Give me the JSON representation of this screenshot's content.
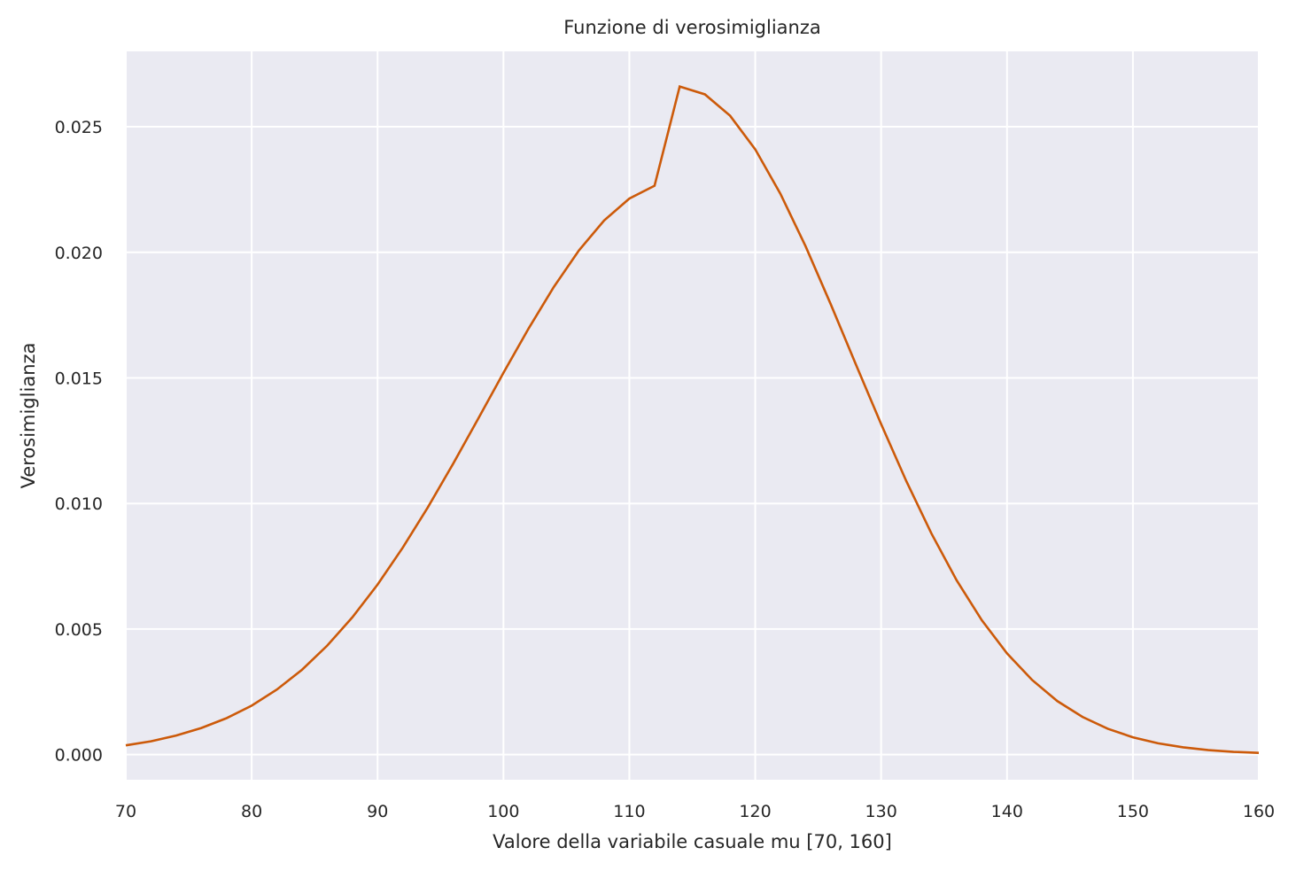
{
  "chart_data": {
    "type": "line",
    "title": "Funzione di verosimiglianza",
    "xlabel": "Valore della variabile casuale mu [70, 160]",
    "ylabel": "Verosimiglianza",
    "xlim": [
      70,
      160
    ],
    "ylim": [
      -0.001,
      0.028
    ],
    "xticks": [
      70,
      80,
      90,
      100,
      110,
      120,
      130,
      140,
      150,
      160
    ],
    "yticks": [
      0.0,
      0.005,
      0.01,
      0.015,
      0.02,
      0.025
    ],
    "xtick_labels": [
      "70",
      "80",
      "90",
      "100",
      "110",
      "120",
      "130",
      "140",
      "150",
      "160"
    ],
    "ytick_labels": [
      "0.000",
      "0.005",
      "0.010",
      "0.015",
      "0.020",
      "0.025"
    ],
    "grid": true,
    "background": "#eaeaf2",
    "grid_color": "#ffffff",
    "series": [
      {
        "color": "#cc5a0a",
        "x": [
          70,
          72,
          74,
          76,
          78,
          80,
          82,
          84,
          86,
          88,
          90,
          92,
          94,
          96,
          98,
          100,
          102,
          104,
          106,
          108,
          110,
          112,
          114,
          116,
          118,
          120,
          122,
          124,
          126,
          128,
          130,
          132,
          134,
          136,
          138,
          140,
          142,
          144,
          146,
          148,
          150,
          152,
          154,
          156,
          158,
          160
        ],
        "y": [
          0.00037,
          0.00053,
          0.00076,
          0.00106,
          0.00145,
          0.00195,
          0.00259,
          0.00338,
          0.00434,
          0.00547,
          0.00677,
          0.00824,
          0.00985,
          0.01158,
          0.01338,
          0.0152,
          0.01697,
          0.01862,
          0.02008,
          0.02127,
          0.02214,
          0.02265,
          0.0266,
          0.02629,
          0.02544,
          0.0241,
          0.02233,
          0.02024,
          0.01793,
          0.01553,
          0.01316,
          0.01089,
          0.0088,
          0.00694,
          0.00535,
          0.00403,
          0.00297,
          0.00213,
          0.0015,
          0.00103,
          0.00069,
          0.00045,
          0.00029,
          0.00018,
          0.00011,
          7e-05
        ]
      }
    ]
  }
}
